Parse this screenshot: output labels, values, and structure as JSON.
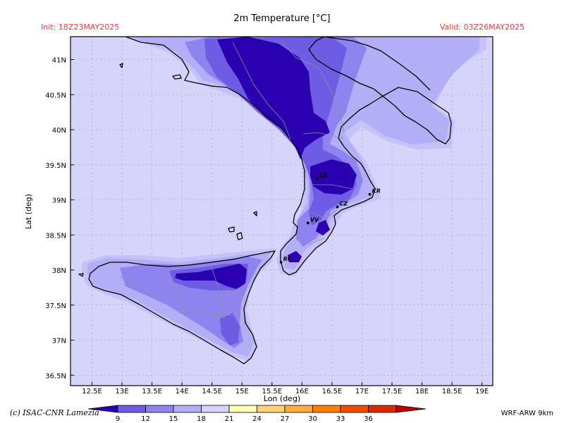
{
  "map": {
    "title": "2m Temperature [°C]",
    "init_label": "Init: 18Z23MAY2025",
    "valid_label": "Valid: 03Z26MAY2025",
    "credit": "(c) ISAC-CNR Lamezia",
    "model": "WRF-ARW 9km",
    "xlabel": "Lon (deg)",
    "ylabel": "Lat (deg)",
    "lon_ticks": [
      "12.5E",
      "13E",
      "13.5E",
      "14E",
      "14.5E",
      "15E",
      "15.5E",
      "16E",
      "16.5E",
      "17E",
      "17.5E",
      "18E",
      "18.5E",
      "19E"
    ],
    "lat_ticks": [
      "41N",
      "40.5N",
      "40N",
      "39.5N",
      "39N",
      "38.5N",
      "38N",
      "37.5N",
      "37N",
      "36.5N"
    ],
    "colorbar": {
      "labels": [
        "9",
        "12",
        "15",
        "18",
        "21",
        "24",
        "27",
        "30",
        "33",
        "36"
      ],
      "colors": [
        "#2a00b0",
        "#6f5ce4",
        "#8f83ef",
        "#b4aef6",
        "#d6d4fb",
        "#fffcb8",
        "#ffd27a",
        "#ffae3d",
        "#ff8000",
        "#f24a00",
        "#d62a00",
        "#c00000"
      ]
    },
    "cities": [
      {
        "code": "CS",
        "lon": 16.25,
        "lat": 39.3
      },
      {
        "code": "KR",
        "lon": 17.13,
        "lat": 39.08
      },
      {
        "code": "CZ",
        "lon": 16.59,
        "lat": 38.9
      },
      {
        "code": "VV",
        "lon": 16.1,
        "lat": 38.67
      },
      {
        "code": "RC",
        "lon": 15.65,
        "lat": 38.11
      }
    ],
    "colors": {
      "background": "#d6d4fb",
      "land_warm": "#b4aef6",
      "land_mid": "#8f83ef",
      "land_cool": "#6f5ce4",
      "land_cold": "#2a00b0",
      "label_red": "#ff3a3a"
    }
  }
}
